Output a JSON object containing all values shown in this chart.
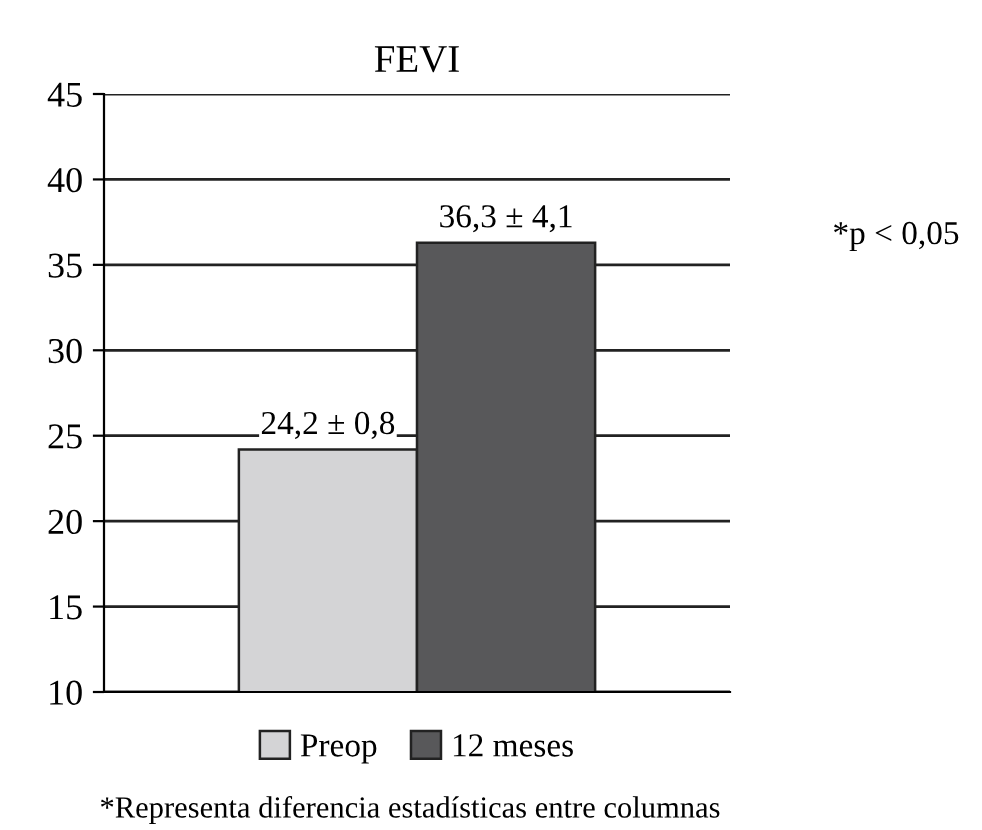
{
  "chart_data": {
    "type": "bar",
    "title": "FEVI",
    "categories": [
      null
    ],
    "series": [
      {
        "name": "Preop",
        "color": "#d4d4d6",
        "values": [
          24.2
        ],
        "value_labels": [
          "24,2 ± 0,8"
        ]
      },
      {
        "name": "12 meses",
        "color": "#58585a",
        "values": [
          36.3
        ],
        "value_labels": [
          "36,3 ± 4,1"
        ]
      }
    ],
    "ylim": [
      10,
      45
    ],
    "yticks": [
      10,
      15,
      20,
      25,
      30,
      35,
      40,
      45
    ],
    "grid": "y",
    "legend": "bottom",
    "annotations": [
      "*p < 0,05",
      "*Representa diferencia estadísticas entre columnas"
    ]
  }
}
